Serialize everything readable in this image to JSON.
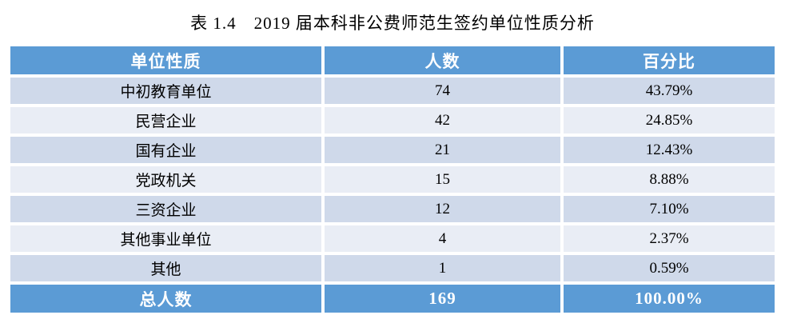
{
  "caption": "表 1.4　2019 届本科非公费师范生签约单位性质分析",
  "table": {
    "columns": [
      "单位性质",
      "人数",
      "百分比"
    ],
    "rows": [
      {
        "category": "中初教育单位",
        "count": "74",
        "percent": "43.79%"
      },
      {
        "category": "民营企业",
        "count": "42",
        "percent": "24.85%"
      },
      {
        "category": "国有企业",
        "count": "21",
        "percent": "12.43%"
      },
      {
        "category": "党政机关",
        "count": "15",
        "percent": "8.88%"
      },
      {
        "category": "三资企业",
        "count": "12",
        "percent": "7.10%"
      },
      {
        "category": "其他事业单位",
        "count": "4",
        "percent": "2.37%"
      },
      {
        "category": "其他",
        "count": "1",
        "percent": "0.59%"
      }
    ],
    "total": {
      "category": "总人数",
      "count": "169",
      "percent": "100.00%"
    }
  },
  "colors": {
    "header_bg": "#5b9bd5",
    "band_dark": "#cfd9ea",
    "band_light": "#e9edf5",
    "header_text": "#ffffff",
    "body_text": "#000000"
  }
}
